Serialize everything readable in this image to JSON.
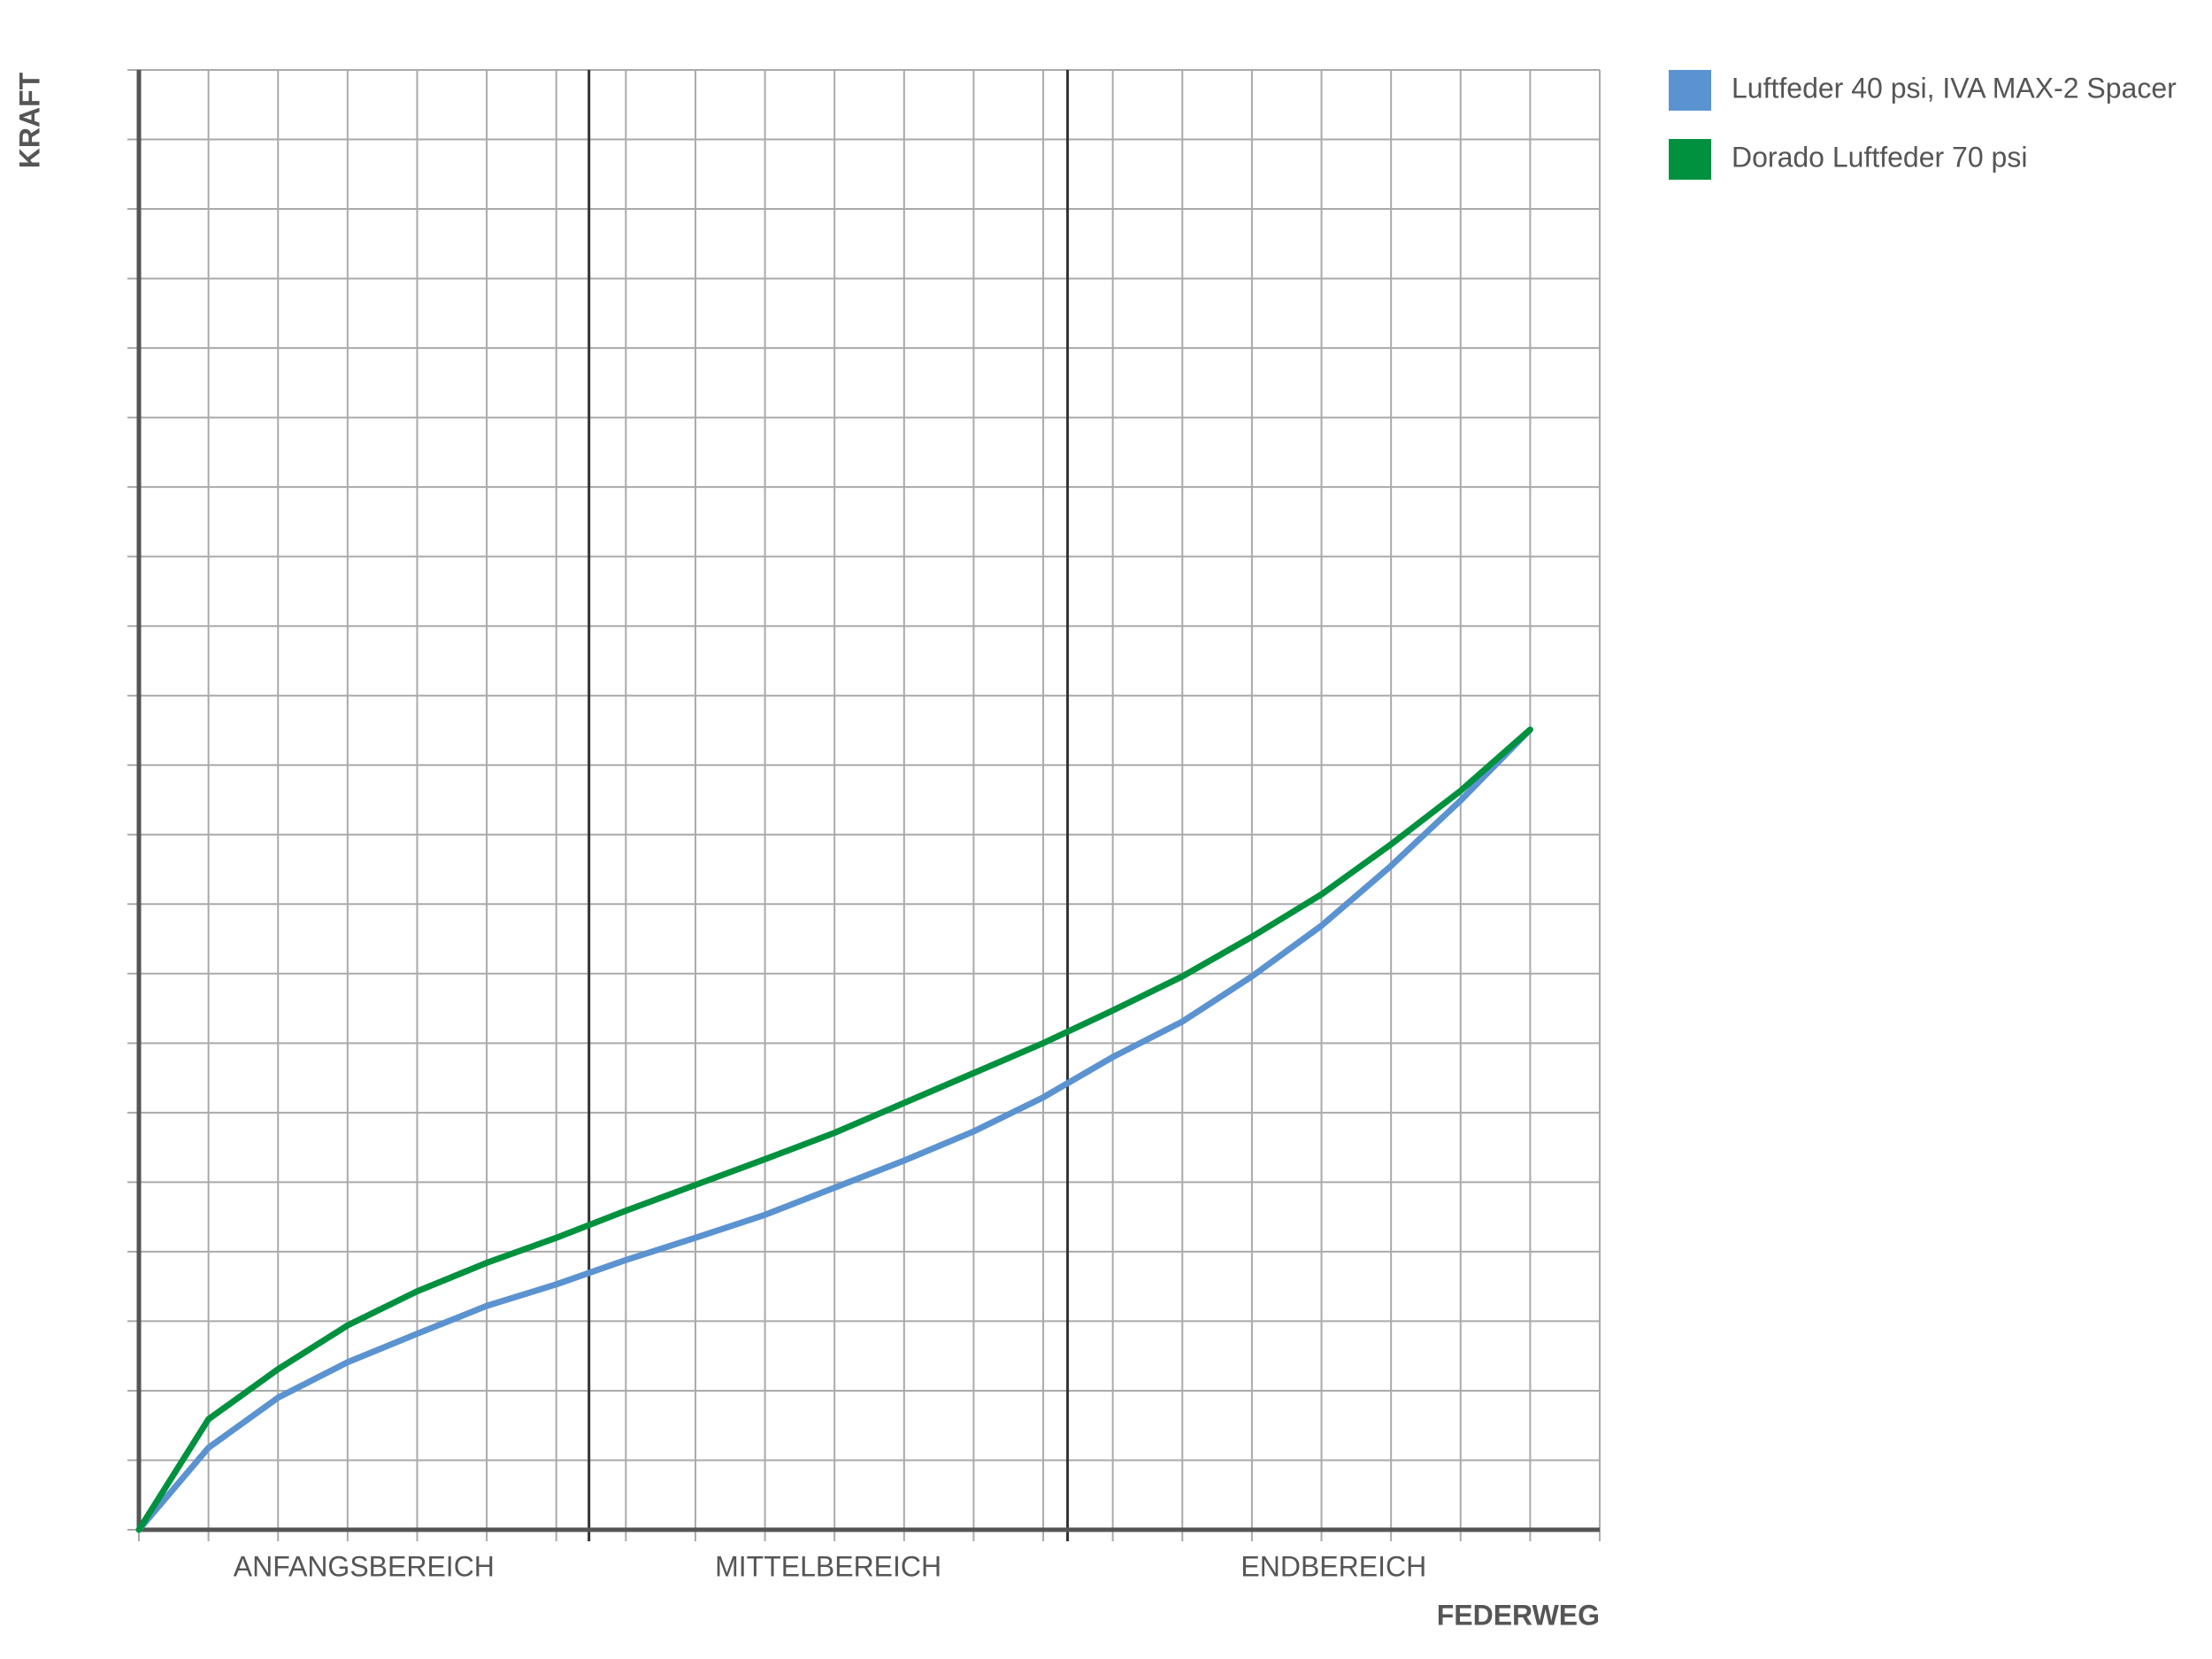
{
  "chart_data": {
    "type": "line",
    "x_label": "FEDERWEG",
    "y_label": "KRAFT",
    "x": [
      0,
      1,
      2,
      3,
      4,
      5,
      6,
      7,
      8,
      9,
      10,
      11,
      12,
      13,
      14,
      15,
      16,
      17,
      18,
      19,
      20
    ],
    "series": [
      {
        "name": "Luftfeder 40 psi, IVA MAX-2 Spacer",
        "color": "#5b93d1",
        "values": [
          0,
          1.18,
          1.9,
          2.41,
          2.82,
          3.22,
          3.53,
          3.88,
          4.2,
          4.53,
          4.92,
          5.31,
          5.73,
          6.22,
          6.8,
          7.31,
          7.96,
          8.69,
          9.55,
          10.49,
          11.51
        ]
      },
      {
        "name": "Dorado Luftfeder 70 psi",
        "color": "#00913f",
        "values": [
          0,
          1.59,
          2.31,
          2.94,
          3.43,
          3.84,
          4.2,
          4.59,
          4.96,
          5.33,
          5.71,
          6.14,
          6.57,
          7.0,
          7.47,
          7.96,
          8.53,
          9.14,
          9.86,
          10.63,
          11.51
        ]
      }
    ],
    "regions": [
      {
        "label": "ANFANGSBEREICH",
        "start": 0,
        "end": 6.47
      },
      {
        "label": "MITTELBEREICH",
        "start": 6.47,
        "end": 13.35
      },
      {
        "label": "ENDBEREICH",
        "start": 13.35,
        "end": 21
      }
    ],
    "xlim": [
      0,
      21
    ],
    "ylim": [
      0,
      21
    ],
    "xticks": [
      0,
      1,
      2,
      3,
      4,
      5,
      6,
      7,
      8,
      9,
      10,
      11,
      12,
      13,
      14,
      15,
      16,
      17,
      18,
      19,
      20,
      21
    ],
    "yticks": [
      0,
      1,
      2,
      3,
      4,
      5,
      6,
      7,
      8,
      9,
      10,
      11,
      12,
      13,
      14,
      15,
      16,
      17,
      18,
      19,
      20,
      21
    ],
    "grid": true,
    "legend": "right"
  }
}
